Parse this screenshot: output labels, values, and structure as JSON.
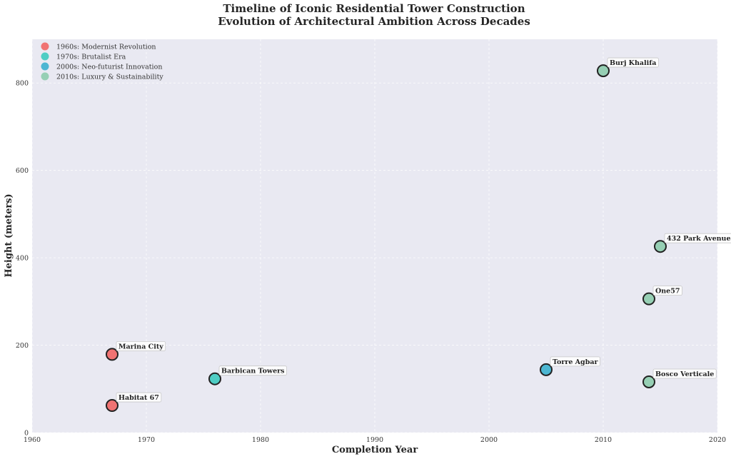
{
  "chart_data": {
    "type": "scatter",
    "title_line1": "Timeline of Iconic Residential Tower Construction",
    "title_line2": "Evolution of Architectural Ambition Across Decades",
    "xlabel": "Completion Year",
    "ylabel": "Height (meters)",
    "xlim": [
      1960,
      2020
    ],
    "ylim": [
      0,
      900
    ],
    "xticks": [
      1960,
      1970,
      1980,
      1990,
      2000,
      2010,
      2020
    ],
    "yticks": [
      0,
      200,
      400,
      600,
      800
    ],
    "grid": true,
    "background": "#e9e9f2",
    "legend_position": "top-left",
    "series": [
      {
        "name": "1960s: Modernist Revolution",
        "color": "#f07373",
        "points": [
          {
            "label": "Marina City",
            "x": 1967,
            "y": 179
          },
          {
            "label": "Habitat 67",
            "x": 1967,
            "y": 62
          }
        ]
      },
      {
        "name": "1970s: Brutalist Era",
        "color": "#4ecdc4",
        "points": [
          {
            "label": "Barbican Towers",
            "x": 1976,
            "y": 123
          }
        ]
      },
      {
        "name": "2000s: Neo-futurist Innovation",
        "color": "#4cb6d2",
        "points": [
          {
            "label": "Torre Agbar",
            "x": 2005,
            "y": 144
          }
        ]
      },
      {
        "name": "2010s: Luxury & Sustainability",
        "color": "#96cfb4",
        "points": [
          {
            "label": "Burj Khalifa",
            "x": 2010,
            "y": 828
          },
          {
            "label": "432 Park Avenue",
            "x": 2015,
            "y": 426
          },
          {
            "label": "One57",
            "x": 2014,
            "y": 306
          },
          {
            "label": "Bosco Verticale",
            "x": 2014,
            "y": 116
          }
        ]
      }
    ]
  }
}
